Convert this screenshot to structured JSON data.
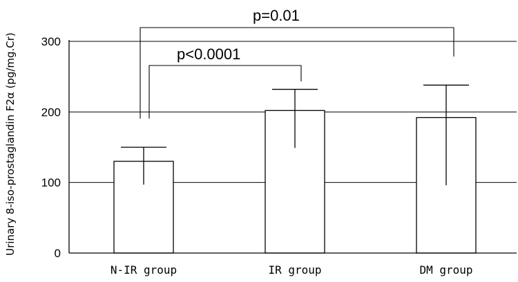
{
  "chart_data": {
    "type": "bar",
    "categories": [
      "N-IR group",
      "IR group",
      "DM group"
    ],
    "values": [
      130,
      202,
      192
    ],
    "error_upper": [
      150,
      232,
      238
    ],
    "error_lower": [
      97,
      149,
      96
    ],
    "xlabel": "",
    "ylabel": "Urinary 8-iso-prostaglandin F2α (pg/mg.Cr)",
    "ylim": [
      0,
      300
    ],
    "yticks": [
      0,
      100,
      200,
      300
    ],
    "grid": true,
    "legend": "none",
    "annotations": [
      {
        "text": "p<0.0001",
        "from": "N-IR group",
        "to": "IR group"
      },
      {
        "text": "p=0.01",
        "from": "N-IR group",
        "to": "DM group"
      }
    ]
  }
}
